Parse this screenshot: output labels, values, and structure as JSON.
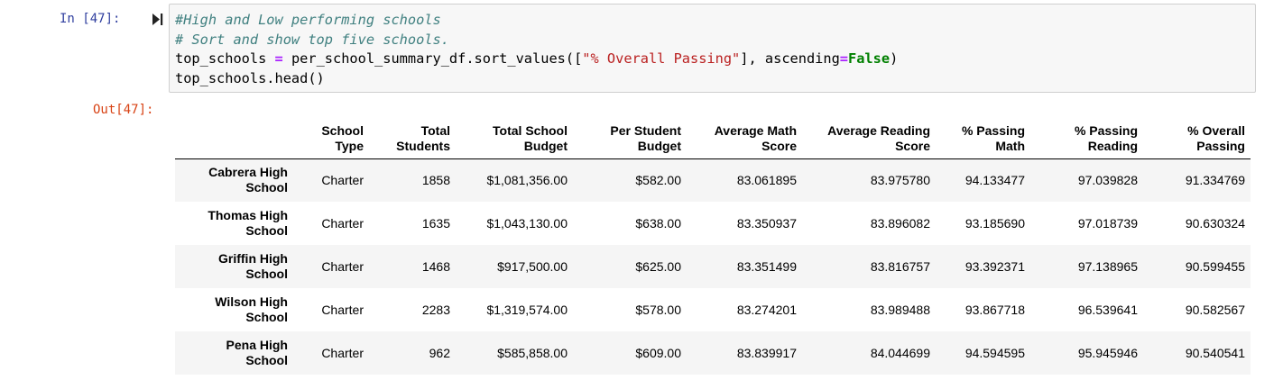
{
  "input_prompt": "In [47]:",
  "output_prompt": "Out[47]:",
  "code": {
    "line1_comment": "#High and Low performing schools",
    "line2_comment": "# Sort and show top five schools.",
    "line3_var": "top_schools ",
    "line3_op": "=",
    "line3_call": " per_school_summary_df.sort_values([",
    "line3_string": "\"% Overall Passing\"",
    "line3_after_string": "], ascending",
    "line3_op2": "=",
    "line3_keyword": "False",
    "line3_close": ")",
    "line4": "top_schools.head()"
  },
  "table": {
    "columns": [
      {
        "line1": "School",
        "line2": "Type"
      },
      {
        "line1": "Total",
        "line2": "Students"
      },
      {
        "line1": "Total School",
        "line2": "Budget"
      },
      {
        "line1": "Per Student",
        "line2": "Budget"
      },
      {
        "line1": "Average Math",
        "line2": "Score"
      },
      {
        "line1": "Average Reading",
        "line2": "Score"
      },
      {
        "line1": "% Passing",
        "line2": "Math"
      },
      {
        "line1": "% Passing",
        "line2": "Reading"
      },
      {
        "line1": "% Overall",
        "line2": "Passing"
      }
    ],
    "rows": [
      {
        "index1": "Cabrera High",
        "index2": "School",
        "cells": [
          "Charter",
          "1858",
          "$1,081,356.00",
          "$582.00",
          "83.061895",
          "83.975780",
          "94.133477",
          "97.039828",
          "91.334769"
        ]
      },
      {
        "index1": "Thomas High",
        "index2": "School",
        "cells": [
          "Charter",
          "1635",
          "$1,043,130.00",
          "$638.00",
          "83.350937",
          "83.896082",
          "93.185690",
          "97.018739",
          "90.630324"
        ]
      },
      {
        "index1": "Griffin High",
        "index2": "School",
        "cells": [
          "Charter",
          "1468",
          "$917,500.00",
          "$625.00",
          "83.351499",
          "83.816757",
          "93.392371",
          "97.138965",
          "90.599455"
        ]
      },
      {
        "index1": "Wilson High",
        "index2": "School",
        "cells": [
          "Charter",
          "2283",
          "$1,319,574.00",
          "$578.00",
          "83.274201",
          "83.989488",
          "93.867718",
          "96.539641",
          "90.582567"
        ]
      },
      {
        "index1": "Pena High",
        "index2": "School",
        "cells": [
          "Charter",
          "962",
          "$585,858.00",
          "$609.00",
          "83.839917",
          "84.044699",
          "94.594595",
          "95.945946",
          "90.540541"
        ]
      }
    ]
  }
}
